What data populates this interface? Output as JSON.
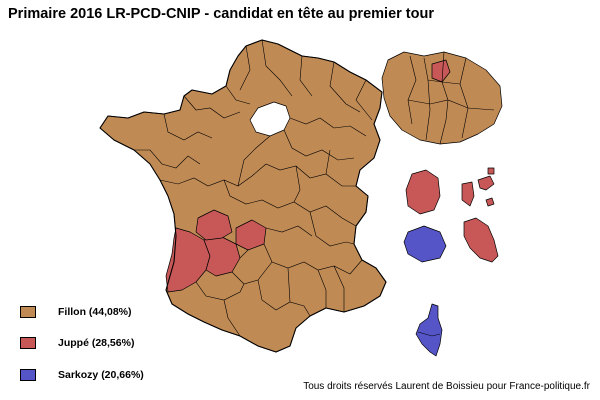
{
  "title": "Primaire 2016 LR-PCD-CNIP - candidat en tête au premier tour",
  "legend": [
    {
      "label": "Fillon (44,08%)",
      "color": "#c08a55"
    },
    {
      "label": "Juppé (28,56%)",
      "color": "#c85858"
    },
    {
      "label": "Sarkozy (20,66%)",
      "color": "#5555c8"
    }
  ],
  "credit": "Tous droits réservés Laurent de Boissieu pour France-politique.fr",
  "colors": {
    "fillon": "#c08a55",
    "juppe": "#c85858",
    "sarkozy": "#5555c8",
    "border": "#000000",
    "background": "#ffffff"
  }
}
